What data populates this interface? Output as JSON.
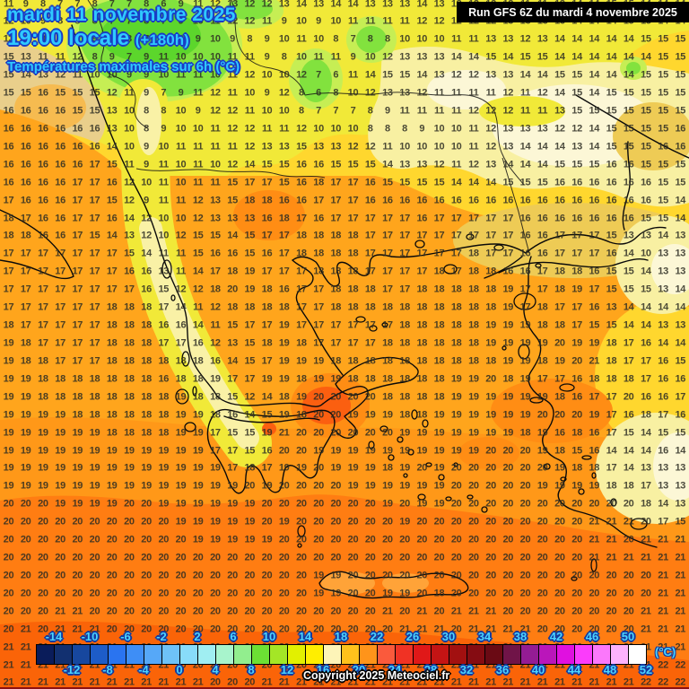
{
  "header": {
    "date_line": "mardi 11 novembre 2025",
    "time_line": "19:00 locale",
    "offset_label": "(+180h)",
    "subtitle": "Températures maximales sur 6h (°C)"
  },
  "run_info": {
    "label": "Run GFS 6Z du mardi 4 novembre 2025"
  },
  "footer": {
    "copyright": "Copyright 2025 Meteociel.fr"
  },
  "legend": {
    "unit": "(°C)",
    "tick_labels_top": [
      "-14",
      "-10",
      "-6",
      "-2",
      "2",
      "6",
      "10",
      "14",
      "18",
      "22",
      "26",
      "30",
      "34",
      "38",
      "42",
      "46",
      "50"
    ],
    "tick_labels_bottom": [
      "-12",
      "-8",
      "-4",
      "0",
      "4",
      "8",
      "12",
      "16",
      "20",
      "24",
      "28",
      "32",
      "36",
      "40",
      "44",
      "48",
      "52"
    ],
    "colors": [
      "#0a1c5a",
      "#123070",
      "#17479e",
      "#1d5cc8",
      "#2a74f0",
      "#3e8ef6",
      "#56a8f8",
      "#6ec2f8",
      "#88dcfa",
      "#a0eef2",
      "#a8f4cc",
      "#92ee8e",
      "#6ce034",
      "#a4e626",
      "#e2f000",
      "#ffee00",
      "#fdf4b8",
      "#ffc21c",
      "#ff941a",
      "#fa5a3c",
      "#f03224",
      "#e01818",
      "#c41414",
      "#a21010",
      "#850c12",
      "#6a0a14",
      "#701448",
      "#941c94",
      "#ba16ba",
      "#e010e0",
      "#fb3cfb",
      "#fb78fb",
      "#fdb2fd",
      "#ffffff"
    ]
  },
  "colors": {
    "title_cyan": "#2fc9ff",
    "title_outline_blue": "#1a3cc4",
    "legend_tick_cyan": "#4ad4ff",
    "number_ink": "#2d2d23",
    "field_lemon": "#f1e938",
    "field_pale_yellow": "#f8f0a2",
    "field_cream": "#fcf7d6",
    "field_green": "#82e23e",
    "field_bright_green": "#5cd62c",
    "field_lime": "#c6ee54",
    "field_tan": "#e9cf8b",
    "field_gold": "#ffd72e",
    "field_marmara_gold": "#eecb55",
    "field_orange": "#ffa51c",
    "field_deep_orange": "#ff7d12",
    "field_red_orange": "#fb5f10",
    "coastline_black": "#0a0a0a"
  },
  "temperature_grid": {
    "x_start": 9.5,
    "x_step": 19.2,
    "y_start": 4.5,
    "y_step": 19.92,
    "rows": [
      "11 9 8 7 7 8 7 7 8 6 9 11 12 13 12 12 13 14 13 14 14 13 13 13 14 13 12 12 12 12 11 11 12 14 14 15 15 14 14 14",
      "12 10 9 8 8 8 7 7 8 7 9 10 11 12 12 11 9 10 9 10 11 11 11 11 12 12 12 12 12 13 13 13 13 14 14 14 15 15 14 14",
      "13 11 10 9 9 9 8 8 7 7 8 9 10 9 8 9 10 11 10 8 7 8 8 10 10 10 11 11 13 13 12 13 14 14 14 14 14 15 15 15",
      "15 13 11 11 12 8 9 7 9 11 10 10 10 11 11 9 8 10 11 11 9 10 12 13 13 13 14 14 15 14 15 15 14 14 14 14 14 14 15 15",
      "15 14 13 12 11 10 10 9 9 10 11 11 10 11 12 10 10 12 7 6 11 14 15 15 14 13 12 12 13 13 14 14 15 15 14 14 14 15 15 15",
      "15 15 16 15 15 15 12 11 9 7 9 11 12 11 10 9 12 8 6 8 10 12 13 13 12 11 11 11 11 12 11 12 14 15 14 15 15 15 15 15",
      "16 16 16 16 15 15 13 10 8 8 10 9 12 12 11 10 10 8 7 7 7 8 9 11 11 11 11 12 12 12 11 11 13 15 15 15 15 15 15 15",
      "16 16 16 16 16 16 13 10 8 9 10 10 11 12 12 11 11 12 10 10 10 8 8 8 9 10 10 11 12 13 13 13 12 12 14 15 15 15 15 16",
      "16 16 16 16 16 16 14 10 9 10 11 11 11 11 12 13 13 15 13 13 12 12 11 10 10 10 10 11 12 13 14 14 14 13 14 15 15 15 16 16",
      "16 16 16 16 16 17 15 11 9 11 10 11 10 12 14 15 15 16 16 15 15 15 14 13 13 12 11 12 13 14 14 14 15 15 15 16 16 15 15 15",
      "16 16 16 16 17 17 16 12 10 11 10 11 11 15 17 17 15 16 18 17 17 16 15 15 15 15 14 14 14 15 15 15 16 16 16 16 16 16 15 15",
      "17 16 16 16 17 17 15 12 9 11 11 12 13 15 18 18 16 16 17 17 17 16 16 16 16 16 16 16 16 16 16 16 16 16 16 16 16 16 15 14",
      "18 17 16 16 17 17 16 14 12 10 10 12 13 13 13 16 18 17 16 17 17 17 17 17 16 17 17 17 17 17 16 16 16 16 16 16 16 15 15 14",
      "18 18 16 16 17 15 14 13 12 10 12 15 15 14 15 17 17 18 18 18 18 17 17 17 17 17 17 17 17 17 16 16 17 17 17 15 13 13 14 13",
      "17 17 17 17 17 17 17 15 14 11 11 15 16 16 15 16 17 18 18 18 18 17 17 17 17 17 17 18 17 17 16 16 17 17 17 16 14 10 13 13",
      "17 17 17 17 17 17 17 16 16 13 11 14 17 18 19 17 17 17 18 18 18 17 17 17 17 18 17 18 18 16 16 17 18 18 16 15 15 14 13 13",
      "17 17 17 17 17 17 17 17 16 15 12 12 18 20 19 18 16 17 17 18 18 18 17 17 18 18 18 18 18 19 17 17 18 19 17 15 15 15 13 14",
      "17 17 17 17 17 17 18 18 18 17 14 11 12 18 18 18 18 17 17 18 18 18 18 18 18 18 18 18 18 19 17 18 17 17 16 13 14 14 14 14",
      "18 17 17 17 17 17 18 18 18 16 16 14 11 15 17 17 19 17 17 17 17 17 17 18 18 18 18 18 19 19 19 18 18 17 15 15 14 14 13 13",
      "19 18 17 17 17 17 18 18 18 17 17 16 12 13 15 18 19 18 17 17 17 17 18 18 18 18 18 18 19 19 19 19 20 19 19 18 17 16 14 14",
      "19 18 18 17 17 17 18 18 18 18 18 18 16 14 15 17 19 19 19 18 18 18 18 18 18 18 18 18 18 19 19 18 19 20 21 18 17 17 16 15",
      "19 19 18 18 18 18 18 18 18 16 18 18 19 17 17 19 19 18 19 19 18 18 18 18 18 18 19 19 20 18 19 17 17 16 18 18 18 17 16 16",
      "19 19 18 18 18 18 18 18 18 18 19 18 18 15 12 14 18 19 20 20 20 20 18 18 18 18 19 19 19 19 19 19 18 16 17 17 20 16 16 17",
      "19 19 19 19 18 18 18 18 18 18 19 19 18 16 14 15 19 18 20 20 19 19 19 18 18 19 19 19 19 19 19 20 20 20 19 17 16 18 17 16",
      "19 19 19 19 19 19 18 18 18 18 19 19 17 15 15 19 21 20 20 20 20 20 20 19 19 19 19 19 19 19 18 19 16 18 16 17 15 14 15 15",
      "19 19 19 19 19 19 19 19 19 19 19 19 17 17 15 16 20 20 19 19 19 19 19 19 19 19 19 19 20 20 20 19 18 15 16 14 14 14 16 14",
      "19 19 19 19 19 19 19 19 19 19 19 19 19 17 18 17 19 19 20 19 19 19 18 19 20 19 20 20 20 20 20 20 19 18 18 17 14 13 13 13",
      "19 19 19 19 19 19 19 19 19 19 19 19 19 19 20 19 20 20 20 20 19 19 19 19 19 19 20 20 20 20 20 19 19 19 19 18 18 17 13 13",
      "20 20 20 19 19 19 19 20 20 19 19 19 19 19 19 20 20 20 20 20 20 20 19 20 19 19 20 20 20 20 20 20 20 20 20 20 20 18 14 13",
      "20 20 20 20 20 20 20 20 20 20 19 19 19 19 19 20 19 20 20 20 20 20 20 19 20 20 20 20 20 20 20 20 20 20 21 21 21 20 17 15",
      "20 20 20 20 20 20 20 20 20 20 20 19 19 19 19 19 20 20 20 20 20 20 20 20 20 20 20 20 20 20 20 20 20 20 21 21 20 21 21 21",
      "20 20 20 20 20 20 20 20 20 20 20 20 20 20 20 20 20 20 20 20 20 20 20 20 20 20 20 20 20 20 20 20 20 20 21 21 21 21 21 21",
      "20 20 20 20 20 20 20 20 20 20 20 20 20 20 20 20 20 20 19 19 20 20 20 20 20 20 20 20 20 20 20 20 20 20 20 20 20 20 21 21",
      "20 20 20 20 20 20 20 20 20 20 20 20 20 20 20 20 20 20 19 19 20 20 19 19 20 18 20 20 20 20 20 20 20 20 20 20 20 20 21 21",
      "20 20 20 21 21 20 20 20 20 20 20 20 20 20 20 20 20 20 20 20 20 20 21 20 21 20 21 21 21 20 20 20 20 20 20 20 20 21 21 21",
      "20 21 20 21 21 21 20 20 20 20 20 20 20 20 20 20 20 20 20 20 20 20 20 21 21 21 20 21 21 21 21 20 20 20 20 20 20 21 21 21",
      "21 21 21 21 21 21 21 21 20 20 20 20 20 20 20 20 20 20 20 20 20 20 21 20 21 20 21 21 21 21 21 20 20 20 20 20 20 21 21 21",
      "21 21 21 21 21 21 21 21 21 21 20 20 20 20 20 20 20 20 20 20 21 21 21 21 21 21 21 21 21 21 21 21 21 21 21 21 21 21 22 22",
      "21 21 21 21 21 21 21 21 21 21 21 21 20 20 20 21 21 21 21 21 21 21 21 21 21 21 21 21 21 21 21 21 21 21 21 21 21 22 22 22"
    ]
  }
}
